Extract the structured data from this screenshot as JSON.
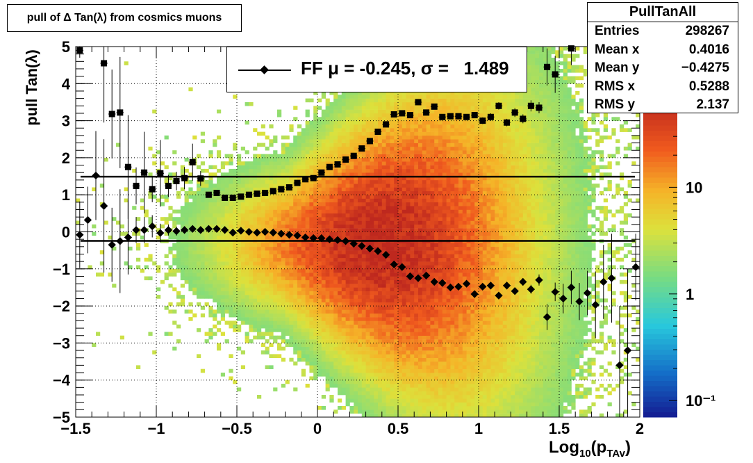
{
  "title": "pull of Δ Tan(λ) from cosmics muons",
  "stats": {
    "name": "PullTanAll",
    "rows": [
      {
        "label": "Entries",
        "value": "298267"
      },
      {
        "label": "Mean x",
        "value": "0.4016"
      },
      {
        "label": "Mean y",
        "value": "−0.4275"
      },
      {
        "label": "RMS x",
        "value": "0.5288"
      },
      {
        "label": "RMS y",
        "value": "2.137"
      }
    ]
  },
  "legend": {
    "text": "FF μ = -0.245, σ =   1.489"
  },
  "axes": {
    "ylabel": "pull Tan(λ)",
    "xlabel_main": "Log",
    "xlabel_sub": "10",
    "xlabel_rest": "(p",
    "xlabel_sub2": "TAv",
    "xlabel_end": ")"
  },
  "chart_data": {
    "type": "heatmap",
    "title": "pull of Δ Tan(λ) from cosmics muons",
    "xlabel": "Log10(pTAv)",
    "ylabel": "pull Tan(λ)",
    "xlim": [
      -1.5,
      2
    ],
    "ylim": [
      -5,
      5
    ],
    "x_ticks": [
      "−1.5",
      "−1",
      "−0.5",
      "0",
      "0.5",
      "1",
      "1.5",
      "2"
    ],
    "x_tick_values": [
      -1.5,
      -1,
      -0.5,
      0,
      0.5,
      1,
      1.5,
      2
    ],
    "y_ticks": [
      "−5",
      "−4",
      "−3",
      "−2",
      "−1",
      "0",
      "1",
      "2",
      "3",
      "4",
      "5"
    ],
    "y_tick_values": [
      -5,
      -4,
      -3,
      -2,
      -1,
      0,
      1,
      2,
      3,
      4,
      5
    ],
    "z_scale": "log",
    "z_ticks": [
      "10",
      "1",
      "10⁻¹"
    ],
    "z_tick_values": [
      10,
      1,
      0.1
    ],
    "grid": true,
    "hlines": [
      1.489,
      -0.245
    ],
    "series": [
      {
        "marker": "square",
        "x": [
          -1.475,
          -1.425,
          -1.375,
          -1.325,
          -1.275,
          -1.225,
          -1.175,
          -1.125,
          -1.075,
          -1.025,
          -0.975,
          -0.925,
          -0.875,
          -0.825,
          -0.775,
          -0.725,
          -0.675,
          -0.625,
          -0.575,
          -0.525,
          -0.475,
          -0.425,
          -0.375,
          -0.325,
          -0.275,
          -0.225,
          -0.175,
          -0.125,
          -0.075,
          -0.025,
          0.025,
          0.075,
          0.125,
          0.175,
          0.225,
          0.275,
          0.325,
          0.375,
          0.425,
          0.475,
          0.525,
          0.575,
          0.625,
          0.675,
          0.725,
          0.775,
          0.825,
          0.875,
          0.925,
          0.975,
          1.025,
          1.075,
          1.125,
          1.175,
          1.225,
          1.275,
          1.325,
          1.375,
          1.425,
          1.475,
          1.525,
          1.575
        ],
        "y": [
          4.9,
          null,
          null,
          4.55,
          3.18,
          3.22,
          1.75,
          1.24,
          1.6,
          1.15,
          1.58,
          1.24,
          1.37,
          1.45,
          1.88,
          1.44,
          1.0,
          1.05,
          0.92,
          0.92,
          0.95,
          1.0,
          1.03,
          1.05,
          1.1,
          1.15,
          1.2,
          1.32,
          1.42,
          1.45,
          1.6,
          1.75,
          1.82,
          1.95,
          2.05,
          2.25,
          2.45,
          2.7,
          2.9,
          3.17,
          3.2,
          3.15,
          3.5,
          3.22,
          3.38,
          3.1,
          3.12,
          3.12,
          3.1,
          3.15,
          3.0,
          3.1,
          3.4,
          2.95,
          3.22,
          3.05,
          3.4,
          3.35,
          4.45,
          4.25,
          null,
          4.95
        ],
        "err": [
          0.2,
          0,
          0,
          1.6,
          1.2,
          1.5,
          1.4,
          0.5,
          1.1,
          0.35,
          0.9,
          0.3,
          0.25,
          0.3,
          0.5,
          0.2,
          0.05,
          0.05,
          0.05,
          0.04,
          0.04,
          0.04,
          0.04,
          0.04,
          0.04,
          0.04,
          0.04,
          0.04,
          0.04,
          0.04,
          0.04,
          0.04,
          0.04,
          0.04,
          0.04,
          0.04,
          0.04,
          0.05,
          0.05,
          0.05,
          0.05,
          0.06,
          0.06,
          0.06,
          0.07,
          0.07,
          0.07,
          0.08,
          0.08,
          0.08,
          0.09,
          0.1,
          0.1,
          0.1,
          0.12,
          0.12,
          0.15,
          0.15,
          0.5,
          0.5,
          0,
          0.45
        ]
      },
      {
        "marker": "diamond",
        "x": [
          -1.475,
          -1.425,
          -1.375,
          -1.325,
          -1.275,
          -1.225,
          -1.175,
          -1.125,
          -1.075,
          -1.025,
          -0.975,
          -0.925,
          -0.875,
          -0.825,
          -0.775,
          -0.725,
          -0.675,
          -0.625,
          -0.575,
          -0.525,
          -0.475,
          -0.425,
          -0.375,
          -0.325,
          -0.275,
          -0.225,
          -0.175,
          -0.125,
          -0.075,
          -0.025,
          0.025,
          0.075,
          0.125,
          0.175,
          0.225,
          0.275,
          0.325,
          0.375,
          0.425,
          0.475,
          0.525,
          0.575,
          0.625,
          0.675,
          0.725,
          0.775,
          0.825,
          0.875,
          0.925,
          0.975,
          1.025,
          1.075,
          1.125,
          1.175,
          1.225,
          1.275,
          1.325,
          1.375,
          1.425,
          1.475,
          1.525,
          1.575,
          1.625,
          1.675,
          1.725,
          1.775,
          1.825,
          1.875,
          1.925,
          1.975
        ],
        "y": [
          -0.08,
          0.32,
          1.52,
          0.7,
          -0.35,
          -0.25,
          -0.15,
          0.05,
          0.05,
          0.15,
          -0.03,
          0.05,
          0.02,
          0.05,
          0.08,
          0.05,
          0.08,
          0.08,
          0.05,
          -0.02,
          0.03,
          0.0,
          -0.02,
          0.0,
          -0.02,
          -0.05,
          -0.08,
          -0.1,
          -0.15,
          -0.17,
          -0.17,
          -0.2,
          -0.22,
          -0.25,
          -0.32,
          -0.38,
          -0.45,
          -0.52,
          -0.62,
          -0.88,
          -0.95,
          -1.2,
          -1.25,
          -1.18,
          -1.35,
          -1.38,
          -1.5,
          -1.48,
          -1.4,
          -1.68,
          -1.48,
          -1.45,
          -1.72,
          -1.45,
          -1.6,
          -1.35,
          -1.55,
          -1.3,
          -2.3,
          -1.62,
          -1.8,
          -1.5,
          -1.88,
          -1.65,
          -1.97,
          -1.35,
          -1.25,
          -3.6,
          -3.2,
          -0.95
        ],
        "err": [
          0.9,
          0.9,
          1.2,
          1.8,
          1.0,
          1.4,
          1.0,
          0.35,
          0.35,
          0.3,
          0.25,
          0.15,
          0.12,
          0.1,
          0.08,
          0.06,
          0.05,
          0.04,
          0.04,
          0.03,
          0.03,
          0.03,
          0.03,
          0.03,
          0.03,
          0.03,
          0.03,
          0.03,
          0.03,
          0.03,
          0.03,
          0.03,
          0.03,
          0.03,
          0.03,
          0.03,
          0.03,
          0.03,
          0.03,
          0.03,
          0.04,
          0.04,
          0.04,
          0.04,
          0.05,
          0.05,
          0.05,
          0.06,
          0.06,
          0.07,
          0.07,
          0.08,
          0.1,
          0.1,
          0.1,
          0.1,
          0.12,
          0.15,
          0.35,
          0.25,
          0.4,
          0.45,
          0.5,
          0.6,
          0.9,
          1.0,
          1.2,
          1.6,
          2.2,
          0.9
        ]
      }
    ]
  },
  "colors": {
    "axis": "#000000",
    "marker": "#000000",
    "grid": "#000000"
  }
}
